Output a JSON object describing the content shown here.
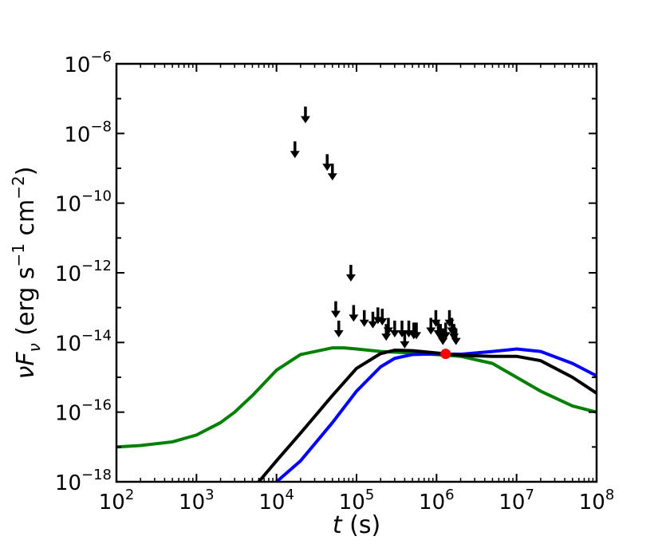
{
  "chart_data": {
    "type": "line",
    "x_scale": "log",
    "y_scale": "log",
    "xlim": [
      100,
      100000000
    ],
    "ylim": [
      1e-18,
      1e-06
    ],
    "xlabel": {
      "math": "t",
      "rest": " (s)"
    },
    "ylabel": {
      "math": "νF",
      "sub": "ν",
      "pre": " (erg s",
      "exp1": "−1",
      "mid": " cm",
      "exp2": "−2",
      "post": ")"
    },
    "x_ticks": [
      {
        "base": "10",
        "exp": "2",
        "value": 100
      },
      {
        "base": "10",
        "exp": "3",
        "value": 1000
      },
      {
        "base": "10",
        "exp": "4",
        "value": 10000
      },
      {
        "base": "10",
        "exp": "5",
        "value": 100000
      },
      {
        "base": "10",
        "exp": "6",
        "value": 1000000
      },
      {
        "base": "10",
        "exp": "7",
        "value": 10000000
      },
      {
        "base": "10",
        "exp": "8",
        "value": 100000000
      }
    ],
    "y_ticks": [
      {
        "base": "10",
        "exp": "−18",
        "value": 1e-18
      },
      {
        "base": "10",
        "exp": "−16",
        "value": 1e-16
      },
      {
        "base": "10",
        "exp": "−14",
        "value": 1e-14
      },
      {
        "base": "10",
        "exp": "−12",
        "value": 1e-12
      },
      {
        "base": "10",
        "exp": "−10",
        "value": 1e-10
      },
      {
        "base": "10",
        "exp": "−8",
        "value": 1e-08
      },
      {
        "base": "10",
        "exp": "−6",
        "value": 1e-06
      }
    ],
    "grid": false,
    "legend": "none",
    "series": [
      {
        "color": "#008000",
        "x": [
          100,
          200,
          500,
          1000,
          2000,
          3000,
          5000,
          10000,
          20000,
          50000,
          70000,
          100000,
          200000,
          500000,
          1000000,
          2000000,
          5000000,
          10000000,
          20000000,
          50000000,
          100000000
        ],
        "y": [
          1e-17,
          1.1e-17,
          1.4e-17,
          2.2e-17,
          5e-17,
          1e-16,
          3e-16,
          1.6e-15,
          4.5e-15,
          7e-15,
          7e-15,
          6.5e-15,
          5.5e-15,
          5e-15,
          4.5e-15,
          4e-15,
          2.5e-15,
          1e-15,
          4e-16,
          1.5e-16,
          1e-16
        ]
      },
      {
        "color": "#0000ff",
        "x": [
          10000,
          20000,
          50000,
          100000,
          200000,
          300000,
          500000,
          700000,
          1000000,
          2000000,
          5000000,
          10000000,
          20000000,
          50000000,
          100000000
        ],
        "y": [
          1e-18,
          4e-18,
          5e-17,
          4e-16,
          2e-15,
          3.5e-15,
          4.5e-15,
          4.6e-15,
          4.6e-15,
          4.6e-15,
          5.5e-15,
          6.5e-15,
          5.5e-15,
          2.5e-15,
          1.1e-15
        ]
      },
      {
        "color": "#000000",
        "x": [
          6000,
          10000,
          20000,
          50000,
          100000,
          200000,
          300000,
          500000,
          1000000,
          1300000,
          2000000,
          5000000,
          10000000,
          20000000,
          50000000,
          100000000
        ],
        "y": [
          1e-18,
          4e-18,
          2.5e-17,
          3e-16,
          1.8e-15,
          4.8e-15,
          6e-15,
          5.8e-15,
          5e-15,
          4.7e-15,
          4.3e-15,
          4e-15,
          4e-15,
          3e-15,
          1e-15,
          3.5e-16
        ]
      }
    ],
    "upper_limits": {
      "color": "#000000",
      "x": [
        17000,
        23000,
        43000,
        50000,
        55000,
        60000,
        85000,
        92000,
        125000,
        160000,
        185000,
        210000,
        235000,
        250000,
        300000,
        370000,
        400000,
        450000,
        520000,
        560000,
        850000,
        980000,
        1050000,
        1120000,
        1200000,
        1300000,
        1450000,
        1550000,
        1650000,
        1750000
      ],
      "y": [
        3.5e-09,
        3.5e-08,
        1.5e-09,
        8e-10,
        9e-14,
        2.5e-14,
        1e-12,
        7e-14,
        5e-14,
        4.5e-14,
        6e-14,
        5.5e-14,
        2e-14,
        3e-14,
        2.5e-14,
        2.5e-14,
        1.2e-14,
        2.5e-14,
        2.2e-14,
        2.2e-14,
        3e-14,
        5e-14,
        2.5e-14,
        2e-14,
        1.5e-14,
        2.2e-14,
        5e-14,
        3e-14,
        2e-14,
        1.5e-14
      ]
    },
    "highlight_points": [
      {
        "x": 1300000,
        "y": 4.7e-15,
        "color": "#ff0000"
      }
    ]
  }
}
